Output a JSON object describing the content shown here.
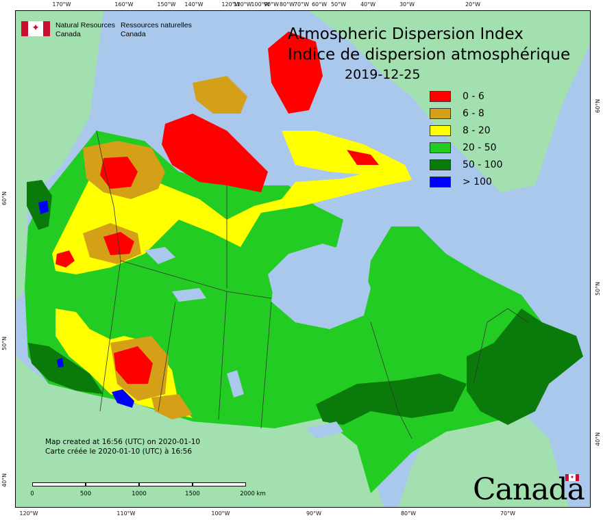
{
  "logo": {
    "dept_en_line1": "Natural Resources",
    "dept_en_line2": "Canada",
    "dept_fr_line1": "Ressources naturelles",
    "dept_fr_line2": "Canada",
    "flag_icon": "canada-flag-icon"
  },
  "title": {
    "en": "Atmospheric Dispersion Index",
    "fr": "Indice de dispersion atmosphérique",
    "date": "2019-12-25"
  },
  "legend": [
    {
      "label": "0 - 6",
      "color": "#ff0000"
    },
    {
      "label": "6 - 8",
      "color": "#d4a017"
    },
    {
      "label": "8 - 20",
      "color": "#ffff00"
    },
    {
      "label": "20 - 50",
      "color": "#22cc22"
    },
    {
      "label": "50 - 100",
      "color": "#0a7a0a"
    },
    {
      "label": "> 100",
      "color": "#0000ff"
    }
  ],
  "graticule": {
    "top": [
      "170°W",
      "160°W",
      "150°W",
      "140°W",
      "120°W",
      "110°W",
      "100°W",
      "90°W",
      "80°W",
      "70°W",
      "60°W",
      "50°W",
      "40°W",
      "30°W",
      "20°W"
    ],
    "bottom": [
      "120°W",
      "110°W",
      "100°W",
      "90°W",
      "80°W",
      "70°W"
    ],
    "left": [
      "60°N",
      "50°N",
      "40°N"
    ],
    "right": [
      "60°N",
      "50°N",
      "40°N"
    ]
  },
  "credit": {
    "en": "Map created at 16:56 (UTC) on 2020-01-10",
    "fr": "Carte créée le 2020-01-10 (UTC) à 16:56"
  },
  "scalebar": {
    "labels": [
      "0",
      "500",
      "1000",
      "1500",
      "2000 km"
    ]
  },
  "wordmark": "Canada",
  "colors": {
    "ocean": "#a9c8ec",
    "foreign_land": "#a3e0b0",
    "lake": "#a9c8ec",
    "boundary": "#333333"
  }
}
